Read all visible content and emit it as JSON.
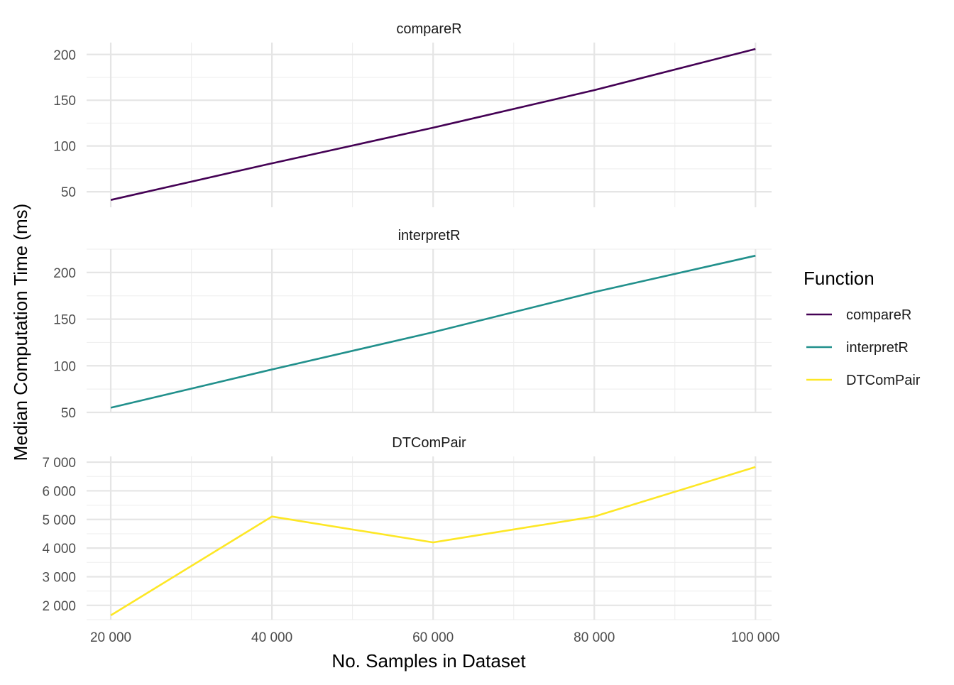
{
  "chart_data": {
    "type": "line",
    "xlabel": "No. Samples in Dataset",
    "ylabel": "Median Computation Time (ms)",
    "x_ticks": [
      "20 000",
      "40 000",
      "60 000",
      "80 000",
      "100 000"
    ],
    "x_tick_values": [
      20000,
      40000,
      60000,
      80000,
      100000
    ],
    "xlim": [
      17000,
      102000
    ],
    "legend": {
      "title": "Function",
      "position": "right",
      "entries": [
        {
          "label": "compareR",
          "color": "#440154"
        },
        {
          "label": "interpretR",
          "color": "#21908C"
        },
        {
          "label": "DTComPair",
          "color": "#FDE725"
        }
      ]
    },
    "grid": true,
    "facets": [
      {
        "title": "compareR",
        "color": "#440154",
        "ylim": [
          33,
          213
        ],
        "y_ticks": [
          "50",
          "100",
          "150",
          "200"
        ],
        "y_tick_values": [
          50,
          100,
          150,
          200
        ],
        "x": [
          20000,
          40000,
          60000,
          80000,
          100000
        ],
        "y": [
          41,
          81,
          120,
          161,
          206
        ]
      },
      {
        "title": "interpretR",
        "color": "#21908C",
        "ylim": [
          50,
          225
        ],
        "y_ticks": [
          "50",
          "100",
          "150",
          "200"
        ],
        "y_tick_values": [
          50,
          100,
          150,
          200
        ],
        "x": [
          20000,
          40000,
          60000,
          80000,
          100000
        ],
        "y": [
          55,
          96,
          136,
          179,
          218
        ]
      },
      {
        "title": "DTComPair",
        "color": "#FDE725",
        "ylim": [
          1500,
          7200
        ],
        "y_ticks": [
          "2 000",
          "3 000",
          "4 000",
          "5 000",
          "6 000",
          "7 000"
        ],
        "y_tick_values": [
          2000,
          3000,
          4000,
          5000,
          6000,
          7000
        ],
        "x": [
          20000,
          40000,
          60000,
          80000,
          100000
        ],
        "y": [
          1650,
          5100,
          4200,
          5100,
          6830
        ]
      }
    ]
  }
}
